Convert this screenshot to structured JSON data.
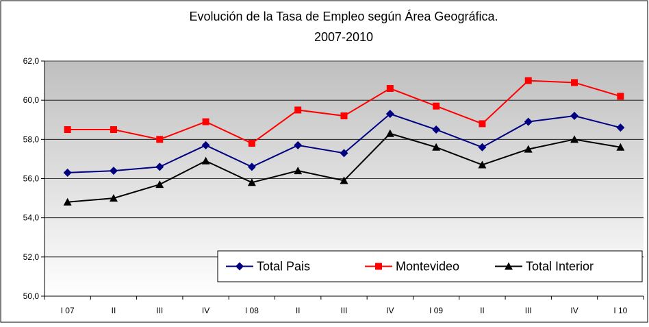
{
  "chart_data": {
    "type": "line",
    "title": "Evolución de la Tasa de Empleo según Área Geográfica.",
    "subtitle": "2007-2010",
    "categories": [
      "I 07",
      "II",
      "III",
      "IV",
      "I 08",
      "II",
      "III",
      "IV",
      "I 09",
      "II",
      "III",
      "IV",
      "I 10"
    ],
    "series": [
      {
        "name": "Total Pais",
        "color": "#000080",
        "marker": "diamond",
        "values": [
          56.3,
          56.4,
          56.6,
          57.7,
          56.6,
          57.7,
          57.3,
          59.3,
          58.5,
          57.6,
          58.9,
          59.2,
          58.6
        ]
      },
      {
        "name": "Montevideo",
        "color": "#ff0000",
        "marker": "square",
        "values": [
          58.5,
          58.5,
          58.0,
          58.9,
          57.8,
          59.5,
          59.2,
          60.6,
          59.7,
          58.8,
          61.0,
          60.9,
          60.2
        ]
      },
      {
        "name": "Total Interior",
        "color": "#000000",
        "marker": "triangle",
        "values": [
          54.8,
          55.0,
          55.7,
          56.9,
          55.8,
          56.4,
          55.9,
          58.3,
          57.6,
          56.7,
          57.5,
          58.0,
          57.6
        ]
      }
    ],
    "ylim": [
      50,
      62
    ],
    "yticks": [
      {
        "value": 50,
        "label": "50,0"
      },
      {
        "value": 52,
        "label": "52,0"
      },
      {
        "value": 54,
        "label": "54,0"
      },
      {
        "value": 56,
        "label": "56,0"
      },
      {
        "value": 58,
        "label": "58,0"
      },
      {
        "value": 60,
        "label": "60,0"
      },
      {
        "value": 62,
        "label": "62,0"
      }
    ],
    "grid": true,
    "legend": "bottom-right"
  }
}
